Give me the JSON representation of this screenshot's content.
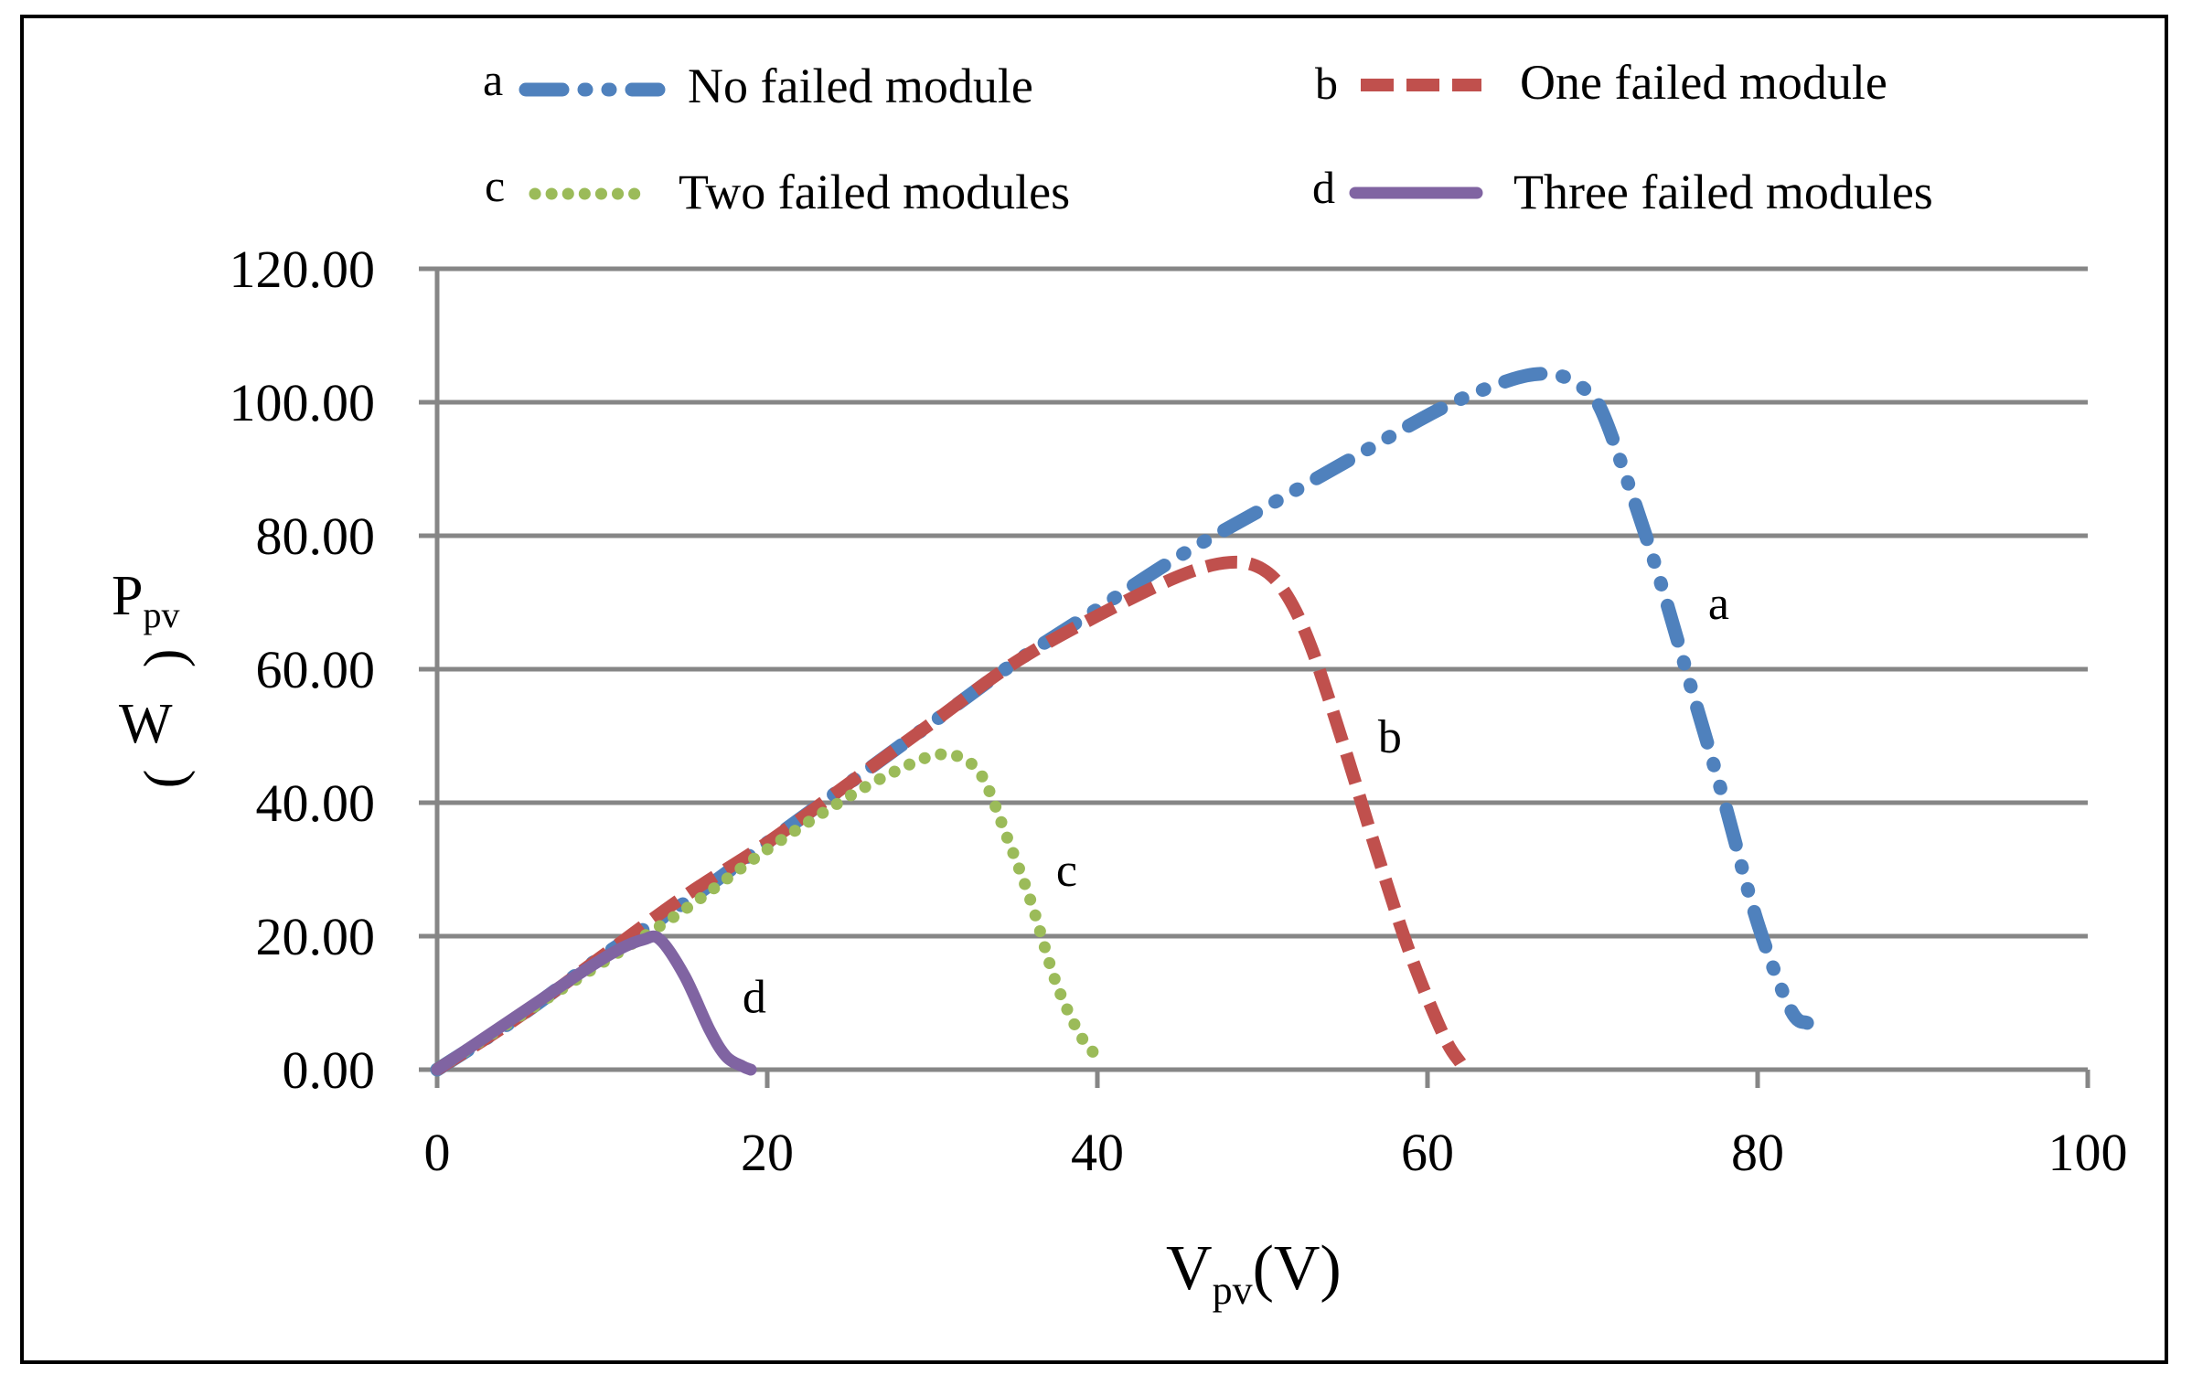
{
  "chart_data": {
    "type": "line",
    "title": "",
    "xlabel_main": "V",
    "xlabel_sub": "pv",
    "xlabel_unit": "(V)",
    "ylabel_main": "P",
    "ylabel_sub": "pv",
    "ylabel_unit_open": "(",
    "ylabel_unit_letter": "W",
    "ylabel_unit_close": ")",
    "xlim": [
      0,
      100
    ],
    "ylim": [
      0,
      120
    ],
    "x_ticks": [
      0,
      20,
      40,
      60,
      80,
      100
    ],
    "x_tick_labels": [
      "0",
      "20",
      "40",
      "60",
      "80",
      "100"
    ],
    "y_ticks": [
      0,
      20,
      40,
      60,
      80,
      100,
      120
    ],
    "y_tick_labels": [
      "0.00",
      "20.00",
      "40.00",
      "60.00",
      "80.00",
      "100.00",
      "120.00"
    ],
    "grid": "horizontal",
    "legend_position": "top",
    "series": [
      {
        "id": "a",
        "letter": "a",
        "name": "No failed module",
        "color": "#4f81bd",
        "style": "dash-dot",
        "label_at": [
          77,
          70
        ],
        "x": [
          0,
          5,
          10,
          15,
          20,
          25,
          30,
          35,
          40,
          45,
          50,
          55,
          60,
          63,
          66,
          68,
          69.5,
          70.5,
          72,
          74,
          76,
          78,
          80,
          82,
          83
        ],
        "y": [
          0,
          8,
          17,
          25,
          34,
          43,
          52,
          61,
          69,
          77,
          84,
          91,
          98,
          101.5,
          104,
          104,
          102,
          99,
          89,
          74,
          57,
          40,
          22,
          9,
          7
        ]
      },
      {
        "id": "b",
        "letter": "b",
        "name": "One failed module",
        "color": "#c0504d",
        "style": "dashed",
        "label_at": [
          57,
          50
        ],
        "x": [
          0,
          5,
          10,
          15,
          20,
          25,
          30,
          35,
          40,
          45,
          48,
          50,
          51.5,
          53,
          55,
          57,
          59,
          61,
          62
        ],
        "y": [
          0,
          8,
          17,
          26,
          34,
          43,
          52,
          61,
          68,
          74,
          76,
          75,
          71,
          63,
          48,
          32,
          17,
          5,
          1
        ]
      },
      {
        "id": "c",
        "letter": "c",
        "name": "Two failed modules",
        "color": "#9bbb59",
        "style": "dotted",
        "label_at": [
          37.5,
          30
        ],
        "x": [
          0,
          5,
          10,
          15,
          20,
          25,
          28,
          30,
          31.5,
          33,
          34.5,
          36,
          37.5,
          39,
          40
        ],
        "y": [
          0,
          8,
          16,
          24,
          33,
          41,
          45,
          47,
          47,
          44,
          35,
          25,
          13,
          5,
          2
        ]
      },
      {
        "id": "d",
        "letter": "d",
        "name": "Three failed modules",
        "color": "#8064a2",
        "style": "solid",
        "label_at": [
          18.5,
          11
        ],
        "x": [
          0,
          3,
          6,
          9,
          11,
          12.5,
          13.5,
          15,
          16.5,
          17.5,
          18.5,
          19
        ],
        "y": [
          0,
          5,
          10,
          15,
          18,
          19.5,
          19.5,
          14,
          6,
          2,
          0.5,
          0
        ]
      }
    ]
  }
}
